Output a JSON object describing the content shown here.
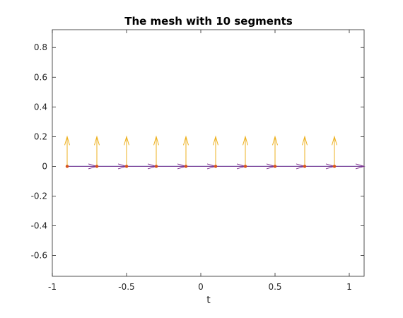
{
  "chart_data": {
    "type": "quiver",
    "title": "The mesh with 10 segments",
    "xlabel": "t",
    "ylabel": "",
    "xlim": [
      -1,
      1.1
    ],
    "ylim": [
      -0.74,
      0.92
    ],
    "x_ticks": [
      -1,
      -0.5,
      0,
      0.5,
      1
    ],
    "x_tick_labels": [
      "-1",
      "-0.5",
      "0",
      "0.5",
      "1"
    ],
    "y_ticks": [
      -0.6,
      -0.4,
      -0.2,
      0,
      0.2,
      0.4,
      0.6,
      0.8
    ],
    "y_tick_labels": [
      "-0.6",
      "-0.4",
      "-0.2",
      "0",
      "0.2",
      "0.4",
      "0.6",
      "0.8"
    ],
    "grid": false,
    "baseline": {
      "from": -0.9,
      "to": 1.1,
      "y": 0,
      "color": "#0072BD"
    },
    "mesh_points": {
      "t": [
        -0.9,
        -0.7,
        -0.5,
        -0.3,
        -0.1,
        0.1,
        0.3,
        0.5,
        0.7,
        0.9
      ],
      "y": [
        0,
        0,
        0,
        0,
        0,
        0,
        0,
        0,
        0,
        0
      ],
      "color": "#D95319"
    },
    "normal_arrows": {
      "t": [
        -0.9,
        -0.7,
        -0.5,
        -0.3,
        -0.1,
        0.1,
        0.3,
        0.5,
        0.7,
        0.9
      ],
      "dx": 0,
      "dy": 0.2,
      "color": "#EDB120"
    },
    "tangent_arrows": {
      "t": [
        -0.9,
        -0.7,
        -0.5,
        -0.3,
        -0.1,
        0.1,
        0.3,
        0.5,
        0.7,
        0.9
      ],
      "dx": 0.2,
      "dy": 0,
      "color": "#7E2F8E"
    }
  }
}
